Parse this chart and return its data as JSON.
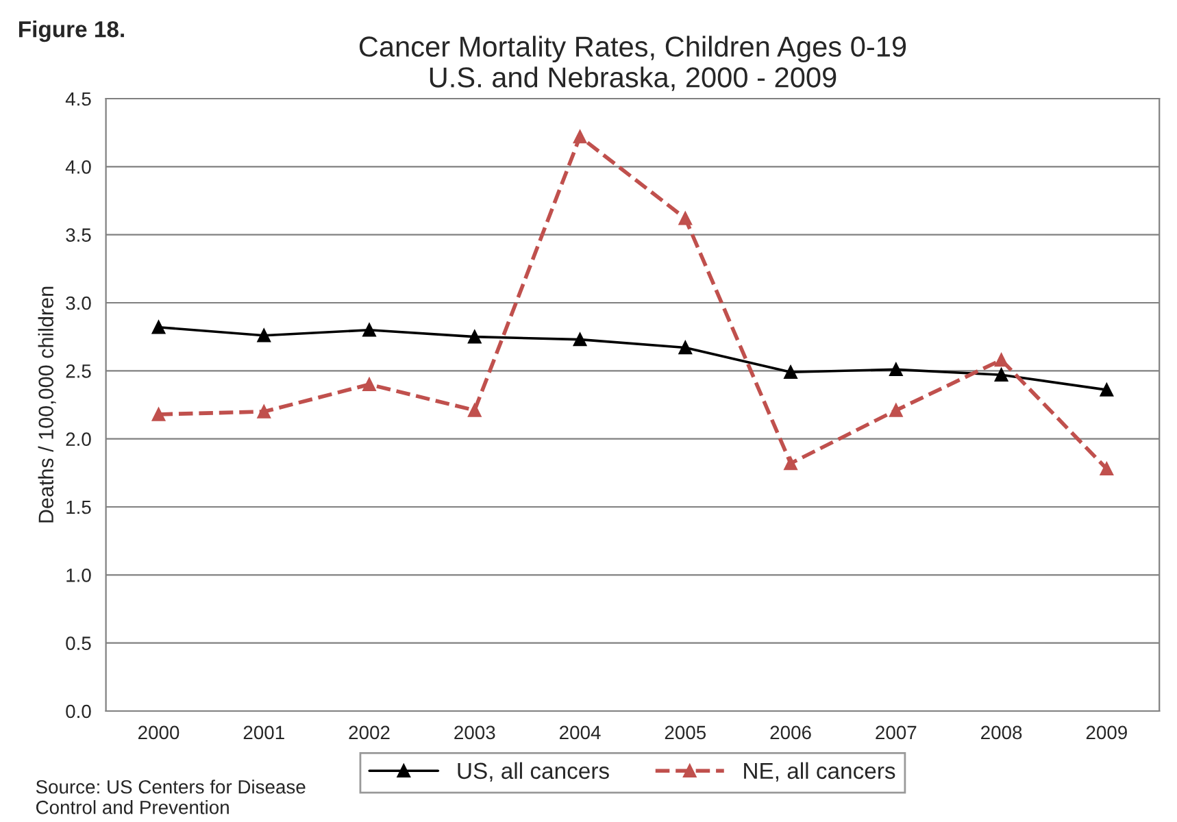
{
  "chart_data": {
    "type": "line",
    "title": "Cancer Mortality Rates, Children Ages 0-19\nU.S. and Nebraska, 2000 - 2009",
    "ylabel": "Deaths / 100,000 children",
    "categories": [
      "2000",
      "2001",
      "2002",
      "2003",
      "2004",
      "2005",
      "2006",
      "2007",
      "2008",
      "2009"
    ],
    "series": [
      {
        "name": "US, all cancers",
        "color": "#000000",
        "line_style": "solid",
        "values": [
          2.82,
          2.76,
          2.8,
          2.75,
          2.73,
          2.67,
          2.49,
          2.51,
          2.47,
          2.36
        ]
      },
      {
        "name": "NE, all cancers",
        "color": "#c0504d",
        "line_style": "dashed",
        "values": [
          2.18,
          2.2,
          2.4,
          2.21,
          4.22,
          3.62,
          1.82,
          2.21,
          2.58,
          1.78
        ]
      }
    ],
    "ylim": [
      0,
      4.5
    ],
    "yticks": [
      {
        "value": 0,
        "label": "0.0"
      },
      0.5,
      {
        "value": 1,
        "label": "1.0"
      },
      1.5,
      {
        "value": 2,
        "label": "2.0"
      },
      2.5,
      {
        "value": 3,
        "label": "3.0"
      },
      3.5,
      {
        "value": 4,
        "label": "4.0"
      },
      4.5
    ],
    "grid": "y",
    "legend": "bottom",
    "marker": "triangle",
    "annotations": [
      "Figure 18.",
      "Source: US Centers for Disease\nControl and Prevention"
    ]
  }
}
